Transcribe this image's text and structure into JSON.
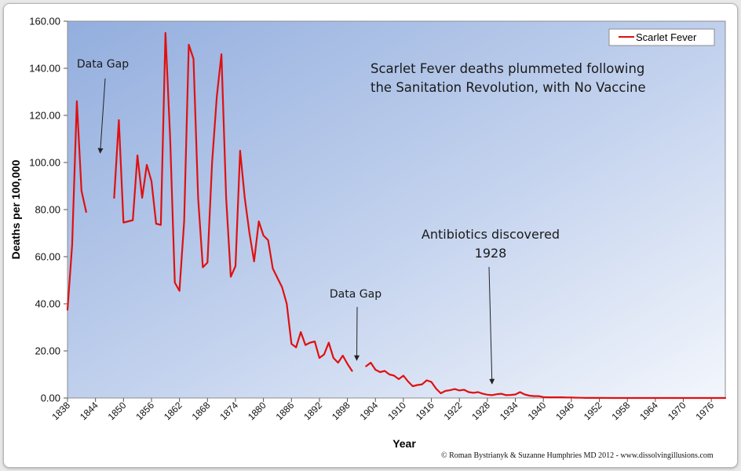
{
  "chart_data": {
    "type": "line",
    "ylabel": "Deaths per 100,000",
    "xlabel": "Year",
    "xlim": [
      1838,
      1979
    ],
    "ylim": [
      0,
      160
    ],
    "y_ticks": [
      "0.00",
      "20.00",
      "40.00",
      "60.00",
      "80.00",
      "100.00",
      "120.00",
      "140.00",
      "160.00"
    ],
    "x_ticks": [
      "1838",
      "1844",
      "1850",
      "1856",
      "1862",
      "1868",
      "1874",
      "1880",
      "1886",
      "1892",
      "1898",
      "1904",
      "1910",
      "1916",
      "1922",
      "1928",
      "1934",
      "1940",
      "1946",
      "1952",
      "1958",
      "1964",
      "1970",
      "1976"
    ],
    "legend_position": "top-right",
    "series": [
      {
        "name": "Scarlet Fever",
        "color": "#e01010",
        "segments": [
          [
            [
              1838,
              37.5
            ],
            [
              1839,
              65
            ],
            [
              1840,
              126
            ],
            [
              1841,
              88
            ],
            [
              1842,
              79
            ]
          ],
          [
            [
              1848,
              85
            ],
            [
              1849,
              118
            ],
            [
              1850,
              74.5
            ],
            [
              1851,
              75
            ],
            [
              1852,
              75.5
            ],
            [
              1853,
              103
            ],
            [
              1854,
              85
            ],
            [
              1855,
              99
            ],
            [
              1856,
              92
            ],
            [
              1857,
              74
            ],
            [
              1858,
              73.5
            ],
            [
              1859,
              155
            ],
            [
              1860,
              110
            ],
            [
              1861,
              49
            ],
            [
              1862,
              45.5
            ],
            [
              1863,
              75
            ],
            [
              1864,
              150
            ],
            [
              1865,
              144
            ],
            [
              1866,
              85
            ],
            [
              1867,
              55.5
            ],
            [
              1868,
              57.5
            ],
            [
              1869,
              100
            ],
            [
              1870,
              128
            ],
            [
              1871,
              146
            ],
            [
              1872,
              85
            ],
            [
              1873,
              51.5
            ],
            [
              1874,
              56
            ],
            [
              1875,
              105
            ],
            [
              1876,
              85
            ],
            [
              1877,
              70
            ],
            [
              1878,
              58
            ],
            [
              1879,
              75
            ],
            [
              1880,
              69
            ],
            [
              1881,
              67
            ],
            [
              1882,
              55
            ],
            [
              1883,
              51
            ],
            [
              1884,
              47
            ],
            [
              1885,
              40
            ],
            [
              1886,
              23
            ],
            [
              1887,
              21.5
            ],
            [
              1888,
              28
            ],
            [
              1889,
              22.5
            ],
            [
              1890,
              23.5
            ],
            [
              1891,
              24
            ],
            [
              1892,
              17
            ],
            [
              1893,
              18.5
            ],
            [
              1894,
              23.5
            ],
            [
              1895,
              17
            ],
            [
              1896,
              15
            ],
            [
              1897,
              18
            ],
            [
              1898,
              14.5
            ],
            [
              1899,
              11.5
            ]
          ],
          [
            [
              1902,
              13.5
            ],
            [
              1903,
              15
            ],
            [
              1904,
              12
            ],
            [
              1905,
              11
            ],
            [
              1906,
              11.5
            ],
            [
              1907,
              10
            ],
            [
              1908,
              9.5
            ],
            [
              1909,
              8
            ],
            [
              1910,
              9.5
            ],
            [
              1911,
              7
            ],
            [
              1912,
              5
            ],
            [
              1913,
              5.5
            ],
            [
              1914,
              5.8
            ],
            [
              1915,
              7.5
            ],
            [
              1916,
              6.8
            ],
            [
              1917,
              4
            ],
            [
              1918,
              2
            ],
            [
              1919,
              3
            ],
            [
              1920,
              3.3
            ],
            [
              1921,
              3.8
            ],
            [
              1922,
              3.2
            ],
            [
              1923,
              3.5
            ],
            [
              1924,
              2.5
            ],
            [
              1925,
              2.2
            ],
            [
              1926,
              2.5
            ],
            [
              1927,
              1.8
            ],
            [
              1928,
              1.4
            ],
            [
              1929,
              1.2
            ],
            [
              1930,
              1.6
            ],
            [
              1931,
              1.8
            ],
            [
              1932,
              1.2
            ],
            [
              1933,
              1.3
            ],
            [
              1934,
              1.5
            ],
            [
              1935,
              2.5
            ],
            [
              1936,
              1.5
            ],
            [
              1937,
              1
            ],
            [
              1938,
              0.8
            ],
            [
              1939,
              0.8
            ],
            [
              1940,
              0.4
            ],
            [
              1941,
              0.3
            ],
            [
              1942,
              0.3
            ],
            [
              1943,
              0.3
            ],
            [
              1944,
              0.3
            ],
            [
              1945,
              0.2
            ],
            [
              1946,
              0.2
            ],
            [
              1947,
              0.15
            ],
            [
              1948,
              0.1
            ],
            [
              1949,
              0.05
            ],
            [
              1950,
              0.05
            ],
            [
              1952,
              0.02
            ],
            [
              1955,
              0.01
            ],
            [
              1960,
              0
            ],
            [
              1965,
              0
            ],
            [
              1970,
              0
            ],
            [
              1975,
              0
            ],
            [
              1979,
              0
            ]
          ]
        ]
      }
    ],
    "annotations": [
      {
        "id": "data-gap-1",
        "text": "Data Gap",
        "arrow_to": [
          1845,
          104
        ]
      },
      {
        "id": "data-gap-2",
        "text": "Data Gap",
        "arrow_to": [
          1900,
          16
        ]
      },
      {
        "id": "headline",
        "lines": [
          "Scarlet Fever deaths plummeted following",
          "the Sanitation Revolution, with No Vaccine"
        ]
      },
      {
        "id": "antibiotics",
        "lines": [
          "Antibiotics discovered",
          "1928"
        ],
        "arrow_to": [
          1929,
          6
        ]
      }
    ]
  },
  "copyright": "© Roman Bystrianyk & Suzanne Humphries MD 2012 - www.dissolvingillusions.com"
}
